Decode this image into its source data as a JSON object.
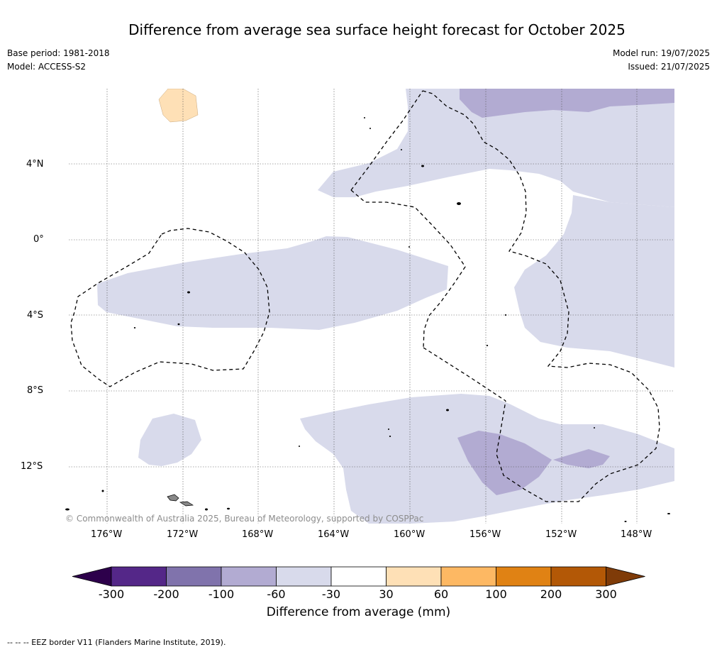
{
  "title": "Difference from average sea surface height forecast for October 2025",
  "base_period": "Base period: 1981-2018",
  "model": "Model: ACCESS-S2",
  "model_run": "Model run: 19/07/2025",
  "issued": "Issued: 21/07/2025",
  "copyright": "© Commonwealth of Australia 2025, Bureau of Meteorology, supported by COSPPac",
  "lat_ticks": [
    "4°N",
    "0°",
    "4°S",
    "8°S",
    "12°S"
  ],
  "lon_ticks": [
    "176°W",
    "172°W",
    "168°W",
    "164°W",
    "160°W",
    "156°W",
    "152°W",
    "148°W"
  ],
  "colorbar": {
    "label": "Difference from average (mm)",
    "ticks": [
      "-300",
      "-200",
      "-100",
      "-60",
      "-30",
      "30",
      "60",
      "100",
      "200",
      "300"
    ],
    "colors": [
      "#2d004b",
      "#542788",
      "#8073ac",
      "#b2abd2",
      "#d8daeb",
      "#ffffff",
      "#fee0b6",
      "#fdb863",
      "#e08214",
      "#b35806",
      "#7f3b08"
    ]
  },
  "footnote": "--  --  -- EEZ border V11 (Flanders Marine Institute, 2019)."
}
